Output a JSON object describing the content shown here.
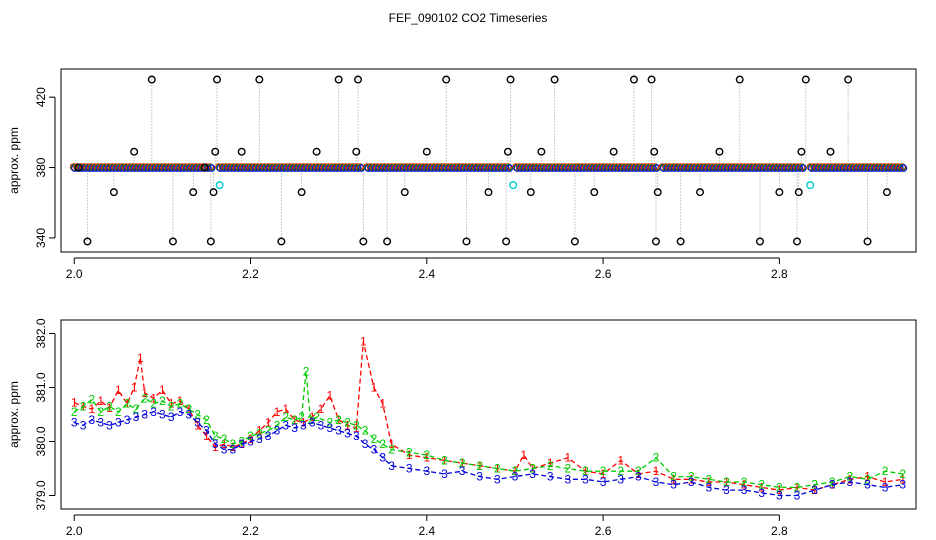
{
  "title": "FEF_090102  CO2 Timeseries",
  "chart_data": [
    {
      "type": "scatter",
      "ylabel": "approx. ppm",
      "xlim": [
        1.985,
        2.955
      ],
      "ylim": [
        332,
        436
      ],
      "xticks": [
        "2.0",
        "2.2",
        "2.4",
        "2.6",
        "2.8"
      ],
      "xtick_values": [
        2.0,
        2.2,
        2.4,
        2.6,
        2.8
      ],
      "yticks": [
        "340",
        "380",
        "420"
      ],
      "ytick_values": [
        340,
        380,
        420
      ],
      "baseline": 380,
      "segments": [
        [
          2.0,
          2.155
        ],
        [
          2.165,
          2.325
        ],
        [
          2.333,
          2.493
        ],
        [
          2.502,
          2.66
        ],
        [
          2.668,
          2.826
        ],
        [
          2.836,
          2.94
        ]
      ],
      "outliers": [
        {
          "x": 2.005,
          "y": 380
        },
        {
          "x": 2.015,
          "y": 338
        },
        {
          "x": 2.045,
          "y": 366
        },
        {
          "x": 2.068,
          "y": 389
        },
        {
          "x": 2.088,
          "y": 430
        },
        {
          "x": 2.112,
          "y": 338
        },
        {
          "x": 2.135,
          "y": 366
        },
        {
          "x": 2.148,
          "y": 380
        },
        {
          "x": 2.155,
          "y": 338
        },
        {
          "x": 2.158,
          "y": 366
        },
        {
          "x": 2.16,
          "y": 389
        },
        {
          "x": 2.162,
          "y": 430
        },
        {
          "x": 2.19,
          "y": 389
        },
        {
          "x": 2.21,
          "y": 430
        },
        {
          "x": 2.235,
          "y": 338
        },
        {
          "x": 2.258,
          "y": 366
        },
        {
          "x": 2.275,
          "y": 389
        },
        {
          "x": 2.3,
          "y": 430
        },
        {
          "x": 2.32,
          "y": 389
        },
        {
          "x": 2.322,
          "y": 430
        },
        {
          "x": 2.328,
          "y": 338
        },
        {
          "x": 2.355,
          "y": 338
        },
        {
          "x": 2.375,
          "y": 366
        },
        {
          "x": 2.4,
          "y": 389
        },
        {
          "x": 2.422,
          "y": 430
        },
        {
          "x": 2.445,
          "y": 338
        },
        {
          "x": 2.47,
          "y": 366
        },
        {
          "x": 2.49,
          "y": 338
        },
        {
          "x": 2.492,
          "y": 389
        },
        {
          "x": 2.495,
          "y": 430
        },
        {
          "x": 2.518,
          "y": 366
        },
        {
          "x": 2.53,
          "y": 389
        },
        {
          "x": 2.545,
          "y": 430
        },
        {
          "x": 2.568,
          "y": 338
        },
        {
          "x": 2.59,
          "y": 366
        },
        {
          "x": 2.612,
          "y": 389
        },
        {
          "x": 2.635,
          "y": 430
        },
        {
          "x": 2.655,
          "y": 430
        },
        {
          "x": 2.658,
          "y": 389
        },
        {
          "x": 2.66,
          "y": 338
        },
        {
          "x": 2.662,
          "y": 366
        },
        {
          "x": 2.688,
          "y": 338
        },
        {
          "x": 2.71,
          "y": 366
        },
        {
          "x": 2.732,
          "y": 389
        },
        {
          "x": 2.755,
          "y": 430
        },
        {
          "x": 2.778,
          "y": 338
        },
        {
          "x": 2.8,
          "y": 366
        },
        {
          "x": 2.82,
          "y": 338
        },
        {
          "x": 2.822,
          "y": 366
        },
        {
          "x": 2.825,
          "y": 389
        },
        {
          "x": 2.83,
          "y": 430
        },
        {
          "x": 2.858,
          "y": 389
        },
        {
          "x": 2.878,
          "y": 430
        },
        {
          "x": 2.9,
          "y": 338
        },
        {
          "x": 2.922,
          "y": 366
        }
      ],
      "cyan_points": [
        {
          "x": 2.165,
          "y": 370
        },
        {
          "x": 2.498,
          "y": 370
        },
        {
          "x": 2.835,
          "y": 370
        }
      ]
    },
    {
      "type": "line",
      "ylabel": "approx. ppm",
      "xlim": [
        1.985,
        2.955
      ],
      "ylim": [
        378.75,
        382.25
      ],
      "xticks": [
        "2.0",
        "2.2",
        "2.4",
        "2.6",
        "2.8"
      ],
      "xtick_values": [
        2.0,
        2.2,
        2.4,
        2.6,
        2.8
      ],
      "yticks": [
        "379.0",
        "380.0",
        "381.0",
        "382.0"
      ],
      "ytick_values": [
        379.0,
        380.0,
        381.0,
        382.0
      ],
      "series": [
        {
          "name": "1",
          "color": "#ff0000",
          "x": [
            2.0,
            2.01,
            2.02,
            2.03,
            2.04,
            2.05,
            2.06,
            2.068,
            2.075,
            2.08,
            2.09,
            2.1,
            2.11,
            2.12,
            2.13,
            2.14,
            2.15,
            2.16,
            2.17,
            2.18,
            2.19,
            2.2,
            2.21,
            2.22,
            2.23,
            2.24,
            2.25,
            2.26,
            2.27,
            2.28,
            2.29,
            2.3,
            2.31,
            2.32,
            2.328,
            2.34,
            2.35,
            2.36,
            2.38,
            2.4,
            2.42,
            2.44,
            2.46,
            2.48,
            2.5,
            2.51,
            2.52,
            2.54,
            2.56,
            2.58,
            2.6,
            2.62,
            2.64,
            2.66,
            2.68,
            2.7,
            2.72,
            2.74,
            2.76,
            2.78,
            2.8,
            2.82,
            2.84,
            2.86,
            2.88,
            2.9,
            2.92,
            2.94
          ],
          "values": [
            380.72,
            380.65,
            380.6,
            380.75,
            380.62,
            380.95,
            380.7,
            381.0,
            381.55,
            380.9,
            380.8,
            380.95,
            380.7,
            380.75,
            380.6,
            380.3,
            380.1,
            379.9,
            379.95,
            379.9,
            379.95,
            380.05,
            380.2,
            380.35,
            380.55,
            380.6,
            380.4,
            380.35,
            380.45,
            380.6,
            380.85,
            380.4,
            380.3,
            380.25,
            381.85,
            381.0,
            380.7,
            379.95,
            379.75,
            379.7,
            379.65,
            379.6,
            379.55,
            379.5,
            379.45,
            379.75,
            379.5,
            379.6,
            379.7,
            379.45,
            379.4,
            379.65,
            379.4,
            379.45,
            379.3,
            379.3,
            379.25,
            379.25,
            379.2,
            379.15,
            379.1,
            379.15,
            379.1,
            379.2,
            379.3,
            379.35,
            379.25,
            379.3
          ]
        },
        {
          "name": "2",
          "color": "#00cc00",
          "x": [
            2.0,
            2.01,
            2.02,
            2.03,
            2.04,
            2.05,
            2.06,
            2.07,
            2.08,
            2.09,
            2.1,
            2.11,
            2.12,
            2.13,
            2.14,
            2.15,
            2.16,
            2.17,
            2.18,
            2.19,
            2.2,
            2.21,
            2.22,
            2.23,
            2.24,
            2.25,
            2.258,
            2.263,
            2.268,
            2.275,
            2.29,
            2.3,
            2.31,
            2.32,
            2.33,
            2.34,
            2.35,
            2.36,
            2.38,
            2.4,
            2.42,
            2.44,
            2.46,
            2.48,
            2.5,
            2.52,
            2.54,
            2.56,
            2.58,
            2.6,
            2.62,
            2.64,
            2.66,
            2.68,
            2.7,
            2.72,
            2.74,
            2.76,
            2.78,
            2.8,
            2.82,
            2.84,
            2.86,
            2.88,
            2.9,
            2.92,
            2.94
          ],
          "values": [
            380.55,
            380.65,
            380.78,
            380.55,
            380.65,
            380.55,
            380.7,
            380.6,
            380.8,
            380.7,
            380.75,
            380.65,
            380.7,
            380.6,
            380.5,
            380.4,
            380.1,
            380.05,
            379.95,
            380.0,
            380.1,
            380.15,
            380.2,
            380.3,
            380.45,
            380.4,
            380.45,
            381.3,
            380.4,
            380.45,
            380.35,
            380.4,
            380.35,
            380.3,
            380.2,
            380.05,
            379.95,
            379.85,
            379.8,
            379.75,
            379.65,
            379.6,
            379.55,
            379.5,
            379.45,
            379.5,
            379.55,
            379.5,
            379.45,
            379.45,
            379.45,
            379.45,
            379.7,
            379.35,
            379.35,
            379.3,
            379.25,
            379.25,
            379.2,
            379.15,
            379.15,
            379.2,
            379.25,
            379.35,
            379.3,
            379.45,
            379.4
          ]
        },
        {
          "name": "3",
          "color": "#0000dd",
          "x": [
            2.0,
            2.01,
            2.02,
            2.03,
            2.04,
            2.05,
            2.06,
            2.07,
            2.08,
            2.09,
            2.1,
            2.11,
            2.12,
            2.13,
            2.14,
            2.15,
            2.16,
            2.17,
            2.18,
            2.19,
            2.2,
            2.21,
            2.22,
            2.23,
            2.24,
            2.25,
            2.26,
            2.27,
            2.28,
            2.29,
            2.3,
            2.31,
            2.32,
            2.33,
            2.34,
            2.35,
            2.36,
            2.38,
            2.4,
            2.42,
            2.44,
            2.46,
            2.48,
            2.5,
            2.52,
            2.54,
            2.56,
            2.58,
            2.6,
            2.62,
            2.64,
            2.66,
            2.68,
            2.7,
            2.72,
            2.74,
            2.76,
            2.78,
            2.8,
            2.82,
            2.84,
            2.86,
            2.88,
            2.9,
            2.92,
            2.94
          ],
          "values": [
            380.35,
            380.3,
            380.4,
            380.35,
            380.3,
            380.35,
            380.4,
            380.45,
            380.5,
            380.55,
            380.5,
            380.45,
            380.55,
            380.5,
            380.35,
            380.2,
            379.95,
            379.85,
            379.85,
            379.95,
            380.0,
            380.05,
            380.1,
            380.2,
            380.3,
            380.25,
            380.3,
            380.35,
            380.3,
            380.25,
            380.2,
            380.15,
            380.1,
            379.95,
            379.85,
            379.7,
            379.55,
            379.5,
            379.45,
            379.4,
            379.45,
            379.35,
            379.3,
            379.35,
            379.4,
            379.35,
            379.3,
            379.3,
            379.25,
            379.3,
            379.35,
            379.25,
            379.2,
            379.25,
            379.15,
            379.1,
            379.1,
            379.05,
            379.0,
            379.0,
            379.1,
            379.2,
            379.25,
            379.2,
            379.15,
            379.2
          ]
        }
      ]
    }
  ]
}
